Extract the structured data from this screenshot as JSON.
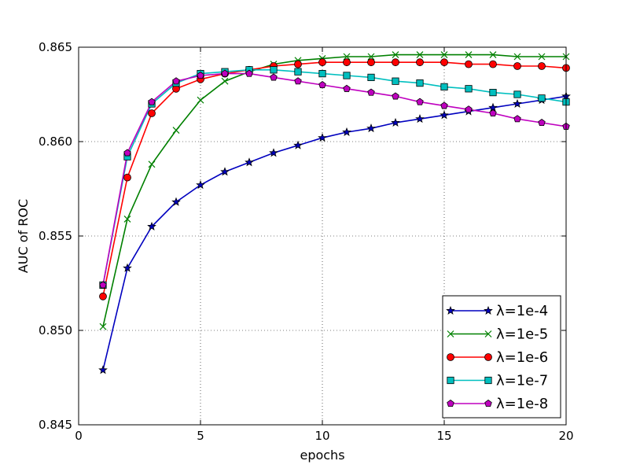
{
  "chart_data": {
    "type": "line",
    "xlabel": "epochs",
    "ylabel": "AUC of ROC",
    "xlim": [
      0,
      20
    ],
    "ylim": [
      0.845,
      0.865
    ],
    "xticks": [
      "0",
      "5",
      "10",
      "15",
      "20"
    ],
    "yticks": [
      "0.845",
      "0.850",
      "0.855",
      "0.860",
      "0.865"
    ],
    "grid": true,
    "legend_position": "bottom-right",
    "x": [
      1,
      2,
      3,
      4,
      5,
      6,
      7,
      8,
      9,
      10,
      11,
      12,
      13,
      14,
      15,
      16,
      17,
      18,
      19,
      20
    ],
    "series": [
      {
        "name": "λ=1e-4",
        "color": "#0000bf",
        "marker": "star",
        "values": [
          0.8479,
          0.8533,
          0.8555,
          0.8568,
          0.8577,
          0.8584,
          0.8589,
          0.8594,
          0.8598,
          0.8602,
          0.8605,
          0.8607,
          0.861,
          0.8612,
          0.8614,
          0.8616,
          0.8618,
          0.862,
          0.8622,
          0.8624
        ]
      },
      {
        "name": "λ=1e-5",
        "color": "#008000",
        "marker": "x",
        "values": [
          0.8502,
          0.8559,
          0.8588,
          0.8606,
          0.8622,
          0.8632,
          0.8637,
          0.8641,
          0.8643,
          0.8644,
          0.8645,
          0.8645,
          0.8646,
          0.8646,
          0.8646,
          0.8646,
          0.8646,
          0.8645,
          0.8645,
          0.8645
        ]
      },
      {
        "name": "λ=1e-6",
        "color": "#ff0000",
        "marker": "circle",
        "values": [
          0.8518,
          0.8581,
          0.8615,
          0.8628,
          0.8633,
          0.8636,
          0.8638,
          0.864,
          0.8641,
          0.8642,
          0.8642,
          0.8642,
          0.8642,
          0.8642,
          0.8642,
          0.8641,
          0.8641,
          0.864,
          0.864,
          0.8639
        ]
      },
      {
        "name": "λ=1e-7",
        "color": "#00bfbf",
        "marker": "square",
        "values": [
          0.8524,
          0.8592,
          0.862,
          0.8631,
          0.8636,
          0.8637,
          0.8638,
          0.8638,
          0.8637,
          0.8636,
          0.8635,
          0.8634,
          0.8632,
          0.8631,
          0.8629,
          0.8628,
          0.8626,
          0.8625,
          0.8623,
          0.8621
        ]
      },
      {
        "name": "λ=1e-8",
        "color": "#bf00bf",
        "marker": "pentagon",
        "values": [
          0.8524,
          0.8594,
          0.8621,
          0.8632,
          0.8635,
          0.8636,
          0.8636,
          0.8634,
          0.8632,
          0.863,
          0.8628,
          0.8626,
          0.8624,
          0.8621,
          0.8619,
          0.8617,
          0.8615,
          0.8612,
          0.861,
          0.8608
        ]
      }
    ]
  }
}
